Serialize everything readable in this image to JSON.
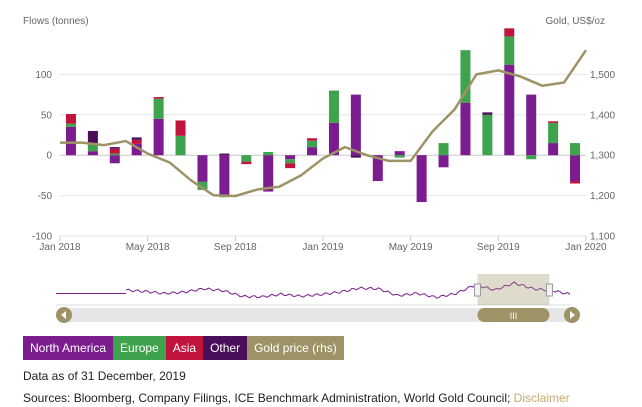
{
  "chart_data": {
    "type": "bar",
    "left_axis_title": "Flows (tonnes)",
    "right_axis_title": "Gold, US$/oz",
    "ylim": [
      -100,
      150
    ],
    "y_ticks": [
      -100,
      -50,
      0,
      50,
      100
    ],
    "y2lim": [
      1100,
      1600
    ],
    "y2_ticks": [
      1100,
      1200,
      1300,
      1400,
      1500
    ],
    "y2_tick_labels": [
      "1,100",
      "1,200",
      "1,300",
      "1,400",
      "1,500"
    ],
    "x_tick_labels": [
      "Jan 2018",
      "May 2018",
      "Sep 2018",
      "Jan 2019",
      "May 2019",
      "Sep 2019",
      "Jan 2020"
    ],
    "x_tick_index": [
      0,
      4,
      8,
      12,
      16,
      20,
      24
    ],
    "categories": [
      "Jan 2018",
      "Feb 2018",
      "Mar 2018",
      "Apr 2018",
      "May 2018",
      "Jun 2018",
      "Jul 2018",
      "Aug 2018",
      "Sep 2018",
      "Oct 2018",
      "Nov 2018",
      "Dec 2018",
      "Jan 2019",
      "Feb 2019",
      "Mar 2019",
      "Apr 2019",
      "May 2019",
      "Jun 2019",
      "Jul 2019",
      "Aug 2019",
      "Sep 2019",
      "Oct 2019",
      "Nov 2019",
      "Dec 2019"
    ],
    "series": [
      {
        "name": "North America",
        "color": "#7b1d8e",
        "values": [
          35,
          5,
          -10,
          14,
          45,
          0,
          -33,
          -50,
          0,
          -45,
          -5,
          10,
          40,
          75,
          -32,
          5,
          -58,
          -15,
          65,
          0,
          112,
          75,
          15,
          -32
        ]
      },
      {
        "name": "Europe",
        "color": "#3fa34d",
        "values": [
          4,
          10,
          2,
          0,
          25,
          24,
          -10,
          -2,
          -8,
          4,
          -5,
          8,
          40,
          0,
          0,
          -3,
          0,
          15,
          65,
          50,
          35,
          -5,
          25,
          15
        ]
      },
      {
        "name": "Asia",
        "color": "#c0143c",
        "values": [
          12,
          0,
          6,
          5,
          2,
          19,
          0,
          0,
          -3,
          0,
          -6,
          3,
          0,
          0,
          0,
          0,
          0,
          0,
          0,
          0,
          10,
          0,
          2,
          -3
        ]
      },
      {
        "name": "Other",
        "color": "#4b0f5a",
        "values": [
          0,
          15,
          2,
          3,
          0,
          0,
          0,
          2,
          0,
          0,
          0,
          0,
          0,
          -3,
          0,
          0,
          0,
          0,
          0,
          3,
          0,
          0,
          0,
          0
        ]
      }
    ],
    "line_series": {
      "name": "Gold price (rhs)",
      "color": "#9e9366",
      "values": [
        1331,
        1331,
        1325,
        1335,
        1304,
        1282,
        1237,
        1201,
        1199,
        1215,
        1222,
        1250,
        1292,
        1320,
        1300,
        1286,
        1286,
        1359,
        1413,
        1500,
        1510,
        1495,
        1472,
        1480,
        1560
      ]
    },
    "grid": true,
    "legend_position": "bottom-left"
  },
  "legend": {
    "items": [
      {
        "label": "North America",
        "color": "#7b1d8e"
      },
      {
        "label": "Europe",
        "color": "#3fa34d"
      },
      {
        "label": "Asia",
        "color": "#c0143c"
      },
      {
        "label": "Other",
        "color": "#4b0f5a"
      },
      {
        "label": "Gold price (rhs)",
        "color": "#9e9366"
      }
    ]
  },
  "navigator": {
    "scroll_left_icon": "arrow-left-icon",
    "scroll_right_icon": "arrow-right-icon",
    "handle_icon": "grip-icon",
    "handle_text": "III",
    "selection_range": [
      0.82,
      0.96
    ]
  },
  "footer": {
    "data_date": "Data as of 31 December, 2019",
    "sources": "Sources: Bloomberg, Company Filings, ICE Benchmark Administration, World Gold Council;",
    "disclaimer_link": "Disclaimer"
  }
}
